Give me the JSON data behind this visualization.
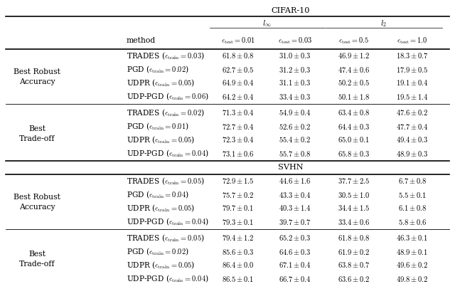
{
  "sections": [
    {
      "dataset": "CIFAR-10",
      "group_label": [
        "Best Robust",
        "Accuracy"
      ],
      "rows": [
        {
          "method": "TRADES ($\\epsilon_{\\mathrm{train}} = 0.03$)",
          "vals": [
            "61.8 \\pm 0.8",
            "31.0 \\pm 0.3",
            "46.9 \\pm 1.2",
            "18.3 \\pm 0.7"
          ],
          "bold": [
            false,
            false,
            false,
            false
          ]
        },
        {
          "method": "PGD ($\\epsilon_{\\mathrm{train}} = 0.02$)",
          "vals": [
            "62.7 \\pm 0.5",
            "31.2 \\pm 0.3",
            "47.4 \\pm 0.6",
            "17.9 \\pm 0.5"
          ],
          "bold": [
            false,
            false,
            false,
            false
          ]
        },
        {
          "method": "UDPR ($\\epsilon_{\\mathrm{train}} = 0.05$)",
          "vals": [
            "64.9 \\pm 0.4",
            "31.1 \\pm 0.3",
            "50.2 \\pm 0.5",
            "19.1 \\pm 0.4"
          ],
          "bold": [
            true,
            false,
            true,
            true
          ]
        },
        {
          "method": "UDP-PGD ($\\epsilon_{\\mathrm{train}} = 0.06$)",
          "vals": [
            "64.2 \\pm 0.4",
            "33.4 \\pm 0.3",
            "50.1 \\pm 1.8",
            "19.5 \\pm 1.4"
          ],
          "bold": [
            false,
            true,
            true,
            true
          ]
        }
      ]
    },
    {
      "dataset": "CIFAR-10",
      "group_label": [
        "Best",
        "Trade-off"
      ],
      "rows": [
        {
          "method": "TRADES ($\\epsilon_{\\mathrm{train}} = 0.02$)",
          "vals": [
            "71.3 \\pm 0.4",
            "54.9 \\pm 0.4",
            "63.4 \\pm 0.8",
            "47.6 \\pm 0.2"
          ],
          "bold": [
            false,
            false,
            false,
            false
          ]
        },
        {
          "method": "PGD ($\\epsilon_{\\mathrm{train}} = 0.01$)",
          "vals": [
            "72.7 \\pm 0.4",
            "52.6 \\pm 0.2",
            "64.4 \\pm 0.3",
            "47.7 \\pm 0.4"
          ],
          "bold": [
            true,
            false,
            false,
            false
          ]
        },
        {
          "method": "UDPR ($\\epsilon_{\\mathrm{train}} = 0.05$)",
          "vals": [
            "72.3 \\pm 0.4",
            "55.4 \\pm 0.2",
            "65.0 \\pm 0.1",
            "49.4 \\pm 0.3"
          ],
          "bold": [
            false,
            false,
            false,
            true
          ]
        },
        {
          "method": "UDP-PGD ($\\epsilon_{\\mathrm{train}} = 0.04$)",
          "vals": [
            "73.1 \\pm 0.6",
            "55.7 \\pm 0.8",
            "65.8 \\pm 0.3",
            "48.9 \\pm 0.3"
          ],
          "bold": [
            true,
            true,
            true,
            false
          ]
        }
      ]
    },
    {
      "dataset": "SVHN",
      "group_label": [
        "Best Robust",
        "Accuracy"
      ],
      "rows": [
        {
          "method": "TRADES ($\\epsilon_{\\mathrm{train}} = 0.05$)",
          "vals": [
            "72.9 \\pm 1.5",
            "44.6 \\pm 1.6",
            "37.7 \\pm 2.5",
            "6.7 \\pm 0.8"
          ],
          "bold": [
            false,
            true,
            true,
            true
          ]
        },
        {
          "method": "PGD ($\\epsilon_{\\mathrm{train}} = 0.04$)",
          "vals": [
            "75.7 \\pm 0.2",
            "43.3 \\pm 0.4",
            "30.5 \\pm 1.0",
            "5.5 \\pm 0.1"
          ],
          "bold": [
            false,
            false,
            false,
            false
          ]
        },
        {
          "method": "UDPR ($\\epsilon_{\\mathrm{train}} = 0.05$)",
          "vals": [
            "79.7 \\pm 0.1",
            "40.3 \\pm 1.4",
            "34.4 \\pm 1.5",
            "6.1 \\pm 0.8"
          ],
          "bold": [
            true,
            false,
            false,
            true
          ]
        },
        {
          "method": "UDP-PGD ($\\epsilon_{\\mathrm{train}} = 0.04$)",
          "vals": [
            "79.3 \\pm 0.1",
            "39.7 \\pm 0.7",
            "33.4 \\pm 0.6",
            "5.8 \\pm 0.6"
          ],
          "bold": [
            false,
            false,
            false,
            false
          ]
        }
      ]
    },
    {
      "dataset": "SVHN",
      "group_label": [
        "Best",
        "Trade-off"
      ],
      "rows": [
        {
          "method": "TRADES ($\\epsilon_{\\mathrm{train}} = 0.05$)",
          "vals": [
            "79.4 \\pm 1.2",
            "65.2 \\pm 0.3",
            "61.8 \\pm 0.8",
            "46.3 \\pm 0.1"
          ],
          "bold": [
            false,
            false,
            false,
            false
          ]
        },
        {
          "method": "PGD ($\\epsilon_{\\mathrm{train}} = 0.02$)",
          "vals": [
            "85.6 \\pm 0.3",
            "64.6 \\pm 0.3",
            "61.9 \\pm 0.2",
            "48.9 \\pm 0.1"
          ],
          "bold": [
            false,
            false,
            false,
            false
          ]
        },
        {
          "method": "UDPR ($\\epsilon_{\\mathrm{train}} = 0.05$)",
          "vals": [
            "86.4 \\pm 0.0",
            "67.1 \\pm 0.4",
            "63.8 \\pm 0.7",
            "49.6 \\pm 0.2"
          ],
          "bold": [
            true,
            true,
            true,
            true
          ]
        },
        {
          "method": "UDP-PGD ($\\epsilon_{\\mathrm{train}} = 0.04$)",
          "vals": [
            "86.5 \\pm 0.1",
            "66.7 \\pm 0.4",
            "63.6 \\pm 0.2",
            "49.8 \\pm 0.2"
          ],
          "bold": [
            true,
            false,
            false,
            false
          ]
        }
      ]
    }
  ],
  "col_eps": [
    "\\epsilon_{\\mathrm{test}} = 0.01",
    "\\epsilon_{\\mathrm{test}} = 0.03",
    "\\epsilon_{\\mathrm{test}} = 0.5",
    "\\epsilon_{\\mathrm{test}} = 1.0"
  ],
  "font_size": 7.8,
  "bold_font_size": 7.8
}
